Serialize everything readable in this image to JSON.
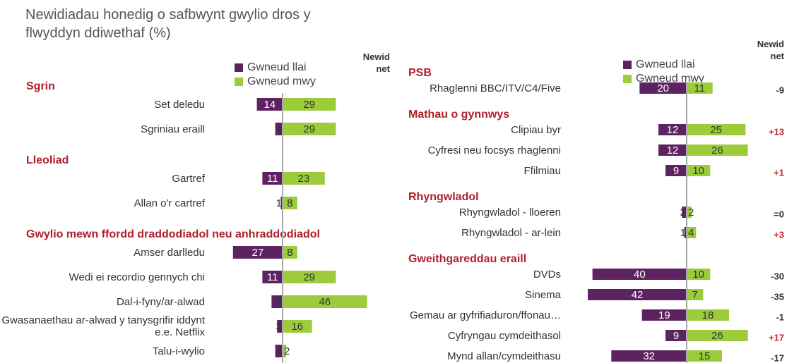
{
  "title": "Newidiadau honedig o safbwynt gwylio dros y flwyddyn ddiwethaf (%)",
  "chart_data": [
    {
      "type": "diverging_bar",
      "xlim": [
        -30,
        50
      ],
      "series": [
        {
          "name": "Gwneud llai",
          "color": "#5c2360"
        },
        {
          "name": "Gwneud mwy",
          "color": "#9ccc3c"
        }
      ],
      "net": {
        "name": "Newid net",
        "color": "#333333",
        "positive_color": "#c0272d"
      },
      "groups": [
        {
          "title": "Sgrin",
          "categories": [
            "Set deledu",
            "Sgriniau eraill"
          ],
          "series_values": [
            [
              14,
              4
            ],
            [
              29,
              29
            ]
          ]
        },
        {
          "title": "Lleoliad",
          "categories": [
            "Gartref",
            "Allan o'r cartref"
          ],
          "series_values": [
            [
              11,
              1
            ],
            [
              23,
              8
            ]
          ]
        },
        {
          "title": "Gwylio mewn ffordd draddodiadol neu anhraddodiadol",
          "categories": [
            "Amser darlledu",
            "Wedi ei recordio gennych chi",
            "Dal-i-fyny/ar-alwad",
            "Gwasanaethau ar-alwad y tanysgrifir iddynt e.e. Netflix",
            "Talu-i-wylio"
          ],
          "series_values": [
            [
              27,
              11,
              6,
              3,
              4
            ],
            [
              8,
              29,
              46,
              16,
              2
            ]
          ]
        }
      ]
    },
    {
      "type": "diverging_bar",
      "xlim": [
        -45,
        30
      ],
      "series": [
        {
          "name": "Gwneud llai",
          "color": "#5c2360"
        },
        {
          "name": "Gwneud mwy",
          "color": "#9ccc3c"
        }
      ],
      "net": {
        "name": "Newid net",
        "color": "#333333",
        "positive_color": "#c0272d"
      },
      "groups": [
        {
          "title": "PSB",
          "categories": [
            "Rhaglenni BBC/ITV/C4/Five"
          ],
          "series_values": [
            [
              20
            ],
            [
              11
            ]
          ],
          "net_values": [
            -9
          ],
          "net_labels": [
            "-9"
          ]
        },
        {
          "title": "Mathau o gynnwys",
          "categories": [
            "Clipiau byr",
            "Cyfresi neu focsys rhaglenni",
            "Ffilmiau"
          ],
          "series_values": [
            [
              12,
              12,
              9
            ],
            [
              25,
              26,
              10
            ]
          ],
          "net_values": [
            13,
            null,
            1
          ],
          "net_labels": [
            "+13",
            null,
            "+1"
          ]
        },
        {
          "title": "Rhyngwladol",
          "categories": [
            "Rhyngwladol - lloeren",
            "Rhyngwladol - ar-lein"
          ],
          "series_values": [
            [
              2,
              1
            ],
            [
              2,
              4
            ]
          ],
          "net_values": [
            0,
            3
          ],
          "net_labels": [
            "=0",
            "+3"
          ]
        },
        {
          "title": "Gweithgareddau eraill",
          "categories": [
            "DVDs",
            "Sinema",
            "Gemau ar gyfrifiaduron/ffonau…",
            "Cyfryngau cymdeithasol",
            "Mynd allan/cymdeithasu"
          ],
          "series_values": [
            [
              40,
              42,
              19,
              9,
              32
            ],
            [
              10,
              7,
              18,
              26,
              15
            ]
          ],
          "net_values": [
            -30,
            -35,
            -1,
            17,
            -17
          ],
          "net_labels": [
            "-30",
            "-35",
            "-1",
            "+17",
            "-17"
          ]
        }
      ]
    }
  ]
}
